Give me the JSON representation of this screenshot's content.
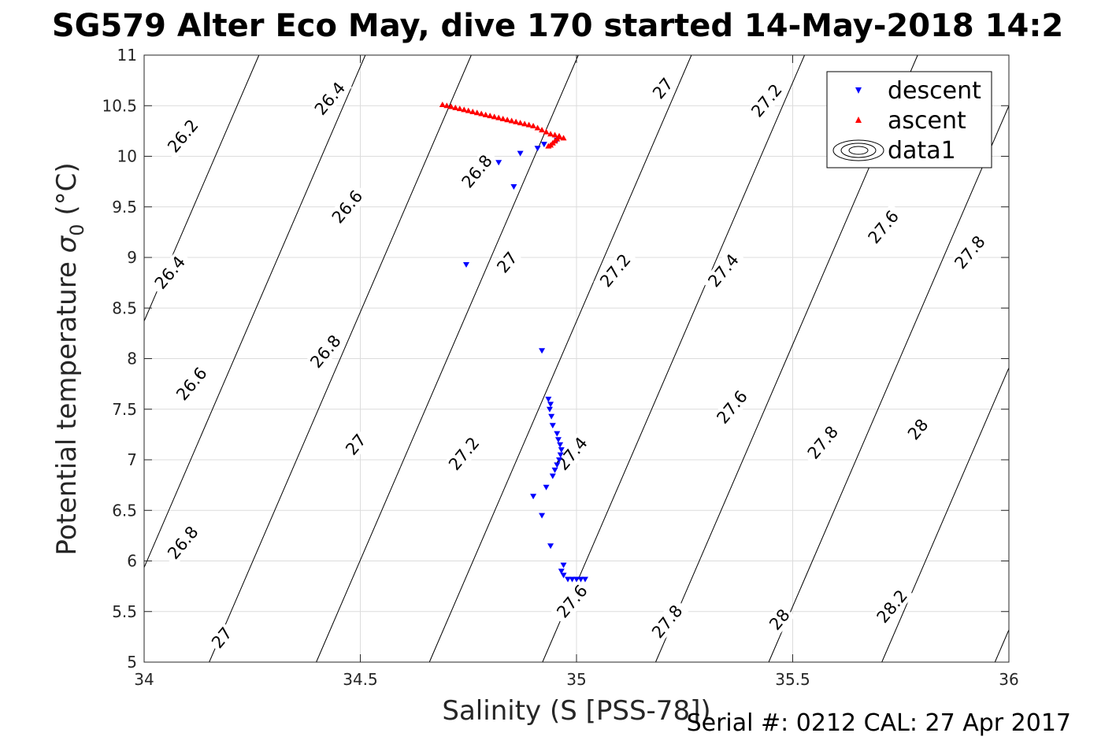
{
  "chart_data": {
    "type": "scatter",
    "title": "SG579 Alter Eco May, dive 170 started 14-May-2018 14:2",
    "xlabel": "Salinity (S [PSS-78])",
    "ylabel_main": "Potential temperature ",
    "ylabel_sigma": "σ",
    "ylabel_sub": "0",
    "ylabel_unit": " (°C)",
    "footer": "Serial #: 0212  CAL: 27 Apr 2017",
    "xlim": [
      34,
      36
    ],
    "ylim": [
      5,
      11
    ],
    "grid": true,
    "x_ticks": [
      34,
      34.5,
      35,
      35.5,
      36
    ],
    "x_tick_labels": [
      "34",
      "34.5",
      "35",
      "35.5",
      "36"
    ],
    "y_ticks": [
      5,
      5.5,
      6,
      6.5,
      7,
      7.5,
      8,
      8.5,
      9,
      9.5,
      10,
      10.5,
      11
    ],
    "y_tick_labels": [
      "5",
      "5.5",
      "6",
      "6.5",
      "7",
      "7.5",
      "8",
      "8.5",
      "9",
      "9.5",
      "10",
      "10.5",
      "11"
    ],
    "legend_location": "top-right",
    "legend": [
      {
        "label": "descent",
        "marker": "triangle-down",
        "color": "#0000ff"
      },
      {
        "label": "ascent",
        "marker": "triangle-up",
        "color": "#ff0000"
      },
      {
        "label": "data1",
        "marker": "contour-ellipses",
        "color": "#000000"
      }
    ],
    "contours": [
      {
        "level": "26.2",
        "x_at_y11": 34.2656,
        "slope": 9.9
      },
      {
        "level": "26.4",
        "x_at_y11": 34.5116,
        "slope": 9.9
      },
      {
        "level": "26.6",
        "x_at_y11": 34.7566,
        "slope": 9.9
      },
      {
        "level": "26.8",
        "x_at_y11": 35.0042,
        "slope": 9.9
      },
      {
        "level": "27",
        "x_at_y11": 35.2658,
        "slope": 9.9
      },
      {
        "level": "27.2",
        "x_at_y11": 35.5274,
        "slope": 9.9
      },
      {
        "level": "27.4",
        "x_at_y11": 35.789,
        "slope": 9.9
      },
      {
        "level": "27.6",
        "x_at_y11": 36.0506,
        "slope": 9.9
      },
      {
        "level": "27.8",
        "x_at_y11": 36.3122,
        "slope": 9.9
      },
      {
        "level": "28",
        "x_at_y11": 36.5738,
        "slope": 9.9
      },
      {
        "level": "28.2",
        "x_at_y11": 36.8354,
        "slope": 9.9
      }
    ],
    "contour_labels": [
      {
        "text": "26.2",
        "x": 34.09,
        "y": 10.2
      },
      {
        "text": "26.4",
        "x": 34.43,
        "y": 10.57
      },
      {
        "text": "26.4",
        "x": 34.06,
        "y": 8.85
      },
      {
        "text": "26.6",
        "x": 34.47,
        "y": 9.5
      },
      {
        "text": "26.6",
        "x": 34.11,
        "y": 7.75
      },
      {
        "text": "26.8",
        "x": 34.77,
        "y": 9.85
      },
      {
        "text": "26.8",
        "x": 34.42,
        "y": 8.07
      },
      {
        "text": "26.8",
        "x": 34.09,
        "y": 6.18
      },
      {
        "text": "27",
        "x": 35.2,
        "y": 10.67
      },
      {
        "text": "27",
        "x": 34.84,
        "y": 8.95
      },
      {
        "text": "27",
        "x": 34.49,
        "y": 7.15
      },
      {
        "text": "27",
        "x": 34.18,
        "y": 5.24
      },
      {
        "text": "27.2",
        "x": 35.44,
        "y": 10.55
      },
      {
        "text": "27.2",
        "x": 35.09,
        "y": 8.87
      },
      {
        "text": "27.2",
        "x": 34.74,
        "y": 7.06
      },
      {
        "text": "27.4",
        "x": 35.34,
        "y": 8.87
      },
      {
        "text": "27.4",
        "x": 34.99,
        "y": 7.06
      },
      {
        "text": "27.6",
        "x": 35.71,
        "y": 9.3
      },
      {
        "text": "27.6",
        "x": 35.36,
        "y": 7.52
      },
      {
        "text": "27.6",
        "x": 34.99,
        "y": 5.6
      },
      {
        "text": "27.8",
        "x": 35.91,
        "y": 9.05
      },
      {
        "text": "27.8",
        "x": 35.57,
        "y": 7.17
      },
      {
        "text": "27.8",
        "x": 35.21,
        "y": 5.4
      },
      {
        "text": "28",
        "x": 35.79,
        "y": 7.3
      },
      {
        "text": "28",
        "x": 35.47,
        "y": 5.42
      },
      {
        "text": "28.2",
        "x": 35.73,
        "y": 5.55
      }
    ],
    "series": [
      {
        "name": "descent",
        "marker": "triangle-down",
        "color": "#0000ff",
        "points": [
          [
            34.82,
            9.94
          ],
          [
            34.87,
            10.03
          ],
          [
            34.91,
            10.08
          ],
          [
            34.925,
            10.12
          ],
          [
            34.955,
            10.16
          ],
          [
            34.855,
            9.7
          ],
          [
            34.745,
            8.93
          ],
          [
            34.92,
            8.08
          ],
          [
            34.935,
            7.6
          ],
          [
            34.94,
            7.55
          ],
          [
            34.938,
            7.5
          ],
          [
            34.942,
            7.43
          ],
          [
            34.945,
            7.34
          ],
          [
            34.955,
            7.26
          ],
          [
            34.958,
            7.2
          ],
          [
            34.962,
            7.15
          ],
          [
            34.965,
            7.1
          ],
          [
            34.963,
            7.05
          ],
          [
            34.96,
            7.0
          ],
          [
            34.955,
            6.95
          ],
          [
            34.95,
            6.9
          ],
          [
            34.945,
            6.84
          ],
          [
            34.93,
            6.73
          ],
          [
            34.9,
            6.64
          ],
          [
            34.92,
            6.45
          ],
          [
            34.94,
            6.15
          ],
          [
            34.97,
            5.96
          ],
          [
            34.965,
            5.9
          ],
          [
            34.97,
            5.86
          ],
          [
            34.98,
            5.82
          ],
          [
            34.99,
            5.82
          ],
          [
            35.0,
            5.82
          ],
          [
            35.01,
            5.82
          ],
          [
            35.02,
            5.82
          ]
        ]
      },
      {
        "name": "ascent",
        "marker": "triangle-up",
        "color": "#ff0000",
        "points": [
          [
            34.69,
            10.51
          ],
          [
            34.7,
            10.5
          ],
          [
            34.71,
            10.49
          ],
          [
            34.72,
            10.48
          ],
          [
            34.73,
            10.47
          ],
          [
            34.74,
            10.46
          ],
          [
            34.75,
            10.45
          ],
          [
            34.76,
            10.44
          ],
          [
            34.77,
            10.43
          ],
          [
            34.78,
            10.42
          ],
          [
            34.79,
            10.41
          ],
          [
            34.8,
            10.4
          ],
          [
            34.81,
            10.39
          ],
          [
            34.82,
            10.38
          ],
          [
            34.83,
            10.37
          ],
          [
            34.84,
            10.36
          ],
          [
            34.85,
            10.35
          ],
          [
            34.86,
            10.34
          ],
          [
            34.87,
            10.33
          ],
          [
            34.88,
            10.32
          ],
          [
            34.89,
            10.31
          ],
          [
            34.9,
            10.3
          ],
          [
            34.91,
            10.28
          ],
          [
            34.92,
            10.26
          ],
          [
            34.93,
            10.24
          ],
          [
            34.94,
            10.22
          ],
          [
            34.95,
            10.21
          ],
          [
            34.96,
            10.2
          ],
          [
            34.97,
            10.18
          ],
          [
            34.96,
            10.19
          ],
          [
            34.955,
            10.17
          ],
          [
            34.95,
            10.15
          ],
          [
            34.945,
            10.13
          ],
          [
            34.94,
            10.11
          ],
          [
            34.935,
            10.1
          ]
        ]
      }
    ]
  }
}
